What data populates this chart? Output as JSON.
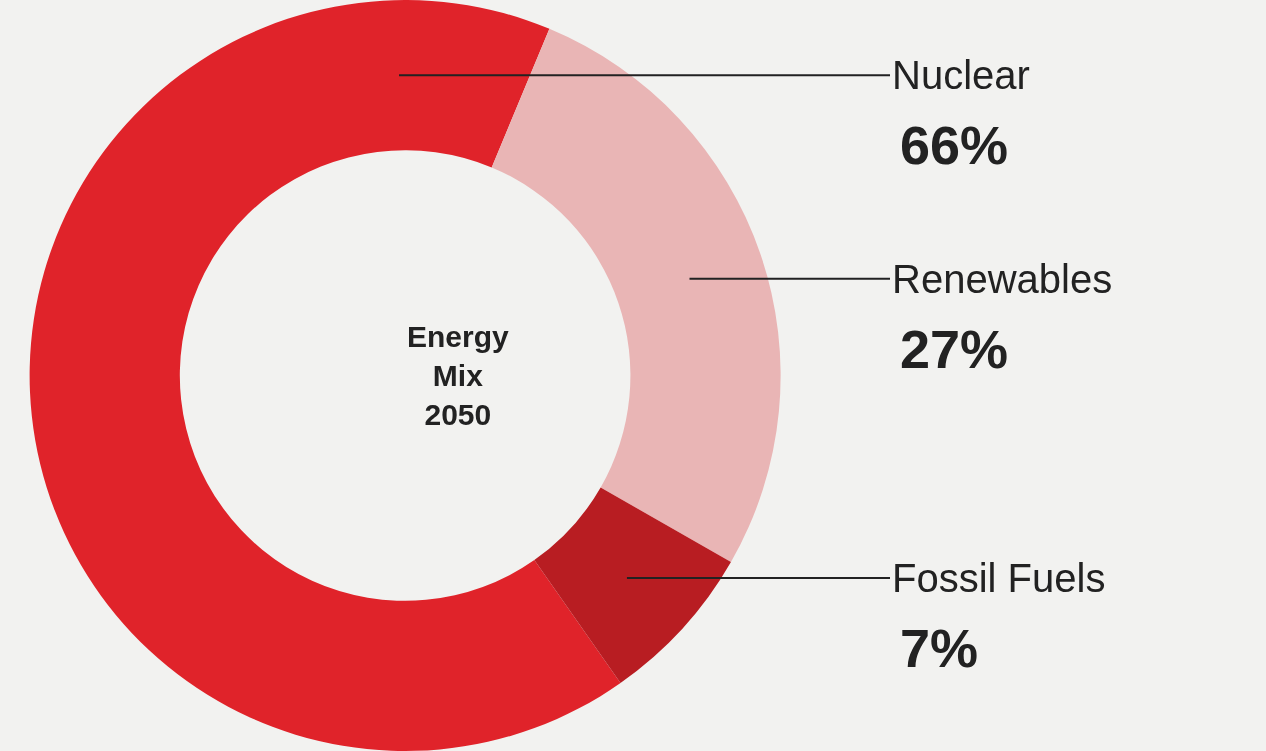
{
  "chart_data": {
    "type": "donut",
    "title": "Energy Mix 2050",
    "categories": [
      "Nuclear",
      "Renewables",
      "Fossil Fuels"
    ],
    "values": [
      66,
      27,
      7
    ],
    "value_labels": [
      "66%",
      "27%",
      "7%"
    ],
    "colors": [
      "#e0232a",
      "#e9b5b5",
      "#b81d22"
    ],
    "legend": false
  }
}
